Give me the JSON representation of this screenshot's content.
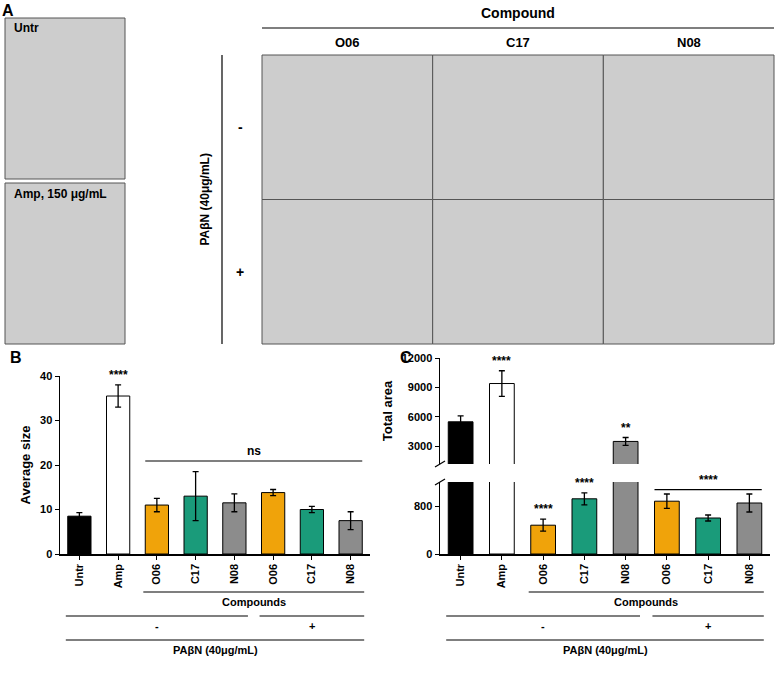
{
  "panel_a": {
    "label": "A",
    "untreated": "Untr",
    "ampicillin": "Amp, 150 μg/mL",
    "header": "Compound",
    "compounds": [
      "O06",
      "C17",
      "N08"
    ],
    "row_title": "PAβN (40μg/mL)",
    "rows": [
      "-",
      "+"
    ]
  },
  "chart_data": [
    {
      "type": "bar",
      "panel": "B",
      "y_label": "Average size",
      "categories": [
        "Untr",
        "Amp",
        "O06",
        "C17",
        "N08",
        "O06",
        "C17",
        "N08"
      ],
      "values": [
        8.5,
        35.5,
        11,
        13,
        11.5,
        13.8,
        10,
        7.5
      ],
      "errors": [
        0.8,
        2.5,
        1.5,
        5.5,
        2,
        0.7,
        0.7,
        2
      ],
      "colors": [
        "#000000",
        "#ffffff",
        "#f0a30a",
        "#1a9b7a",
        "#8c8c8c",
        "#f0a30a",
        "#1a9b7a",
        "#8c8c8c"
      ],
      "ylim": [
        0,
        40
      ],
      "yticks": [
        0,
        10,
        20,
        30,
        40
      ],
      "significance": [
        null,
        "****",
        null,
        null,
        null,
        null,
        null,
        null
      ],
      "brackets": [
        {
          "text": "ns",
          "span": [
            2,
            7
          ]
        }
      ],
      "groups": [
        [
          {
            "label": "Compounds",
            "span": [
              2,
              7
            ]
          }
        ],
        [
          {
            "label": "-",
            "span": [
              0,
              4
            ]
          },
          {
            "label": "+",
            "span": [
              5,
              7
            ]
          }
        ],
        [
          {
            "label": "PAβN (40μg/mL)",
            "span": [
              0,
              7
            ]
          }
        ]
      ]
    },
    {
      "type": "bar",
      "panel": "C",
      "y_label": "Total area",
      "categories": [
        "Untr",
        "Amp",
        "O06",
        "C17",
        "N08",
        "O06",
        "C17",
        "N08"
      ],
      "values": [
        5500,
        9400,
        480,
        920,
        3500,
        880,
        600,
        850
      ],
      "errors": [
        600,
        1300,
        100,
        100,
        400,
        120,
        50,
        150
      ],
      "colors": [
        "#000000",
        "#ffffff",
        "#f0a30a",
        "#1a9b7a",
        "#8c8c8c",
        "#f0a30a",
        "#1a9b7a",
        "#8c8c8c"
      ],
      "segments": [
        {
          "ylim": [
            0,
            1200
          ],
          "yticks": [
            0,
            800
          ]
        },
        {
          "ylim": [
            1200,
            12000
          ],
          "yticks": [
            3000,
            6000,
            9000,
            12000
          ]
        }
      ],
      "significance": [
        null,
        "****",
        "****",
        "****",
        "**",
        null,
        null,
        null
      ],
      "brackets": [
        {
          "text": "****",
          "span": [
            5,
            7
          ]
        }
      ],
      "groups": [
        [
          {
            "label": "Compounds",
            "span": [
              2,
              7
            ]
          }
        ],
        [
          {
            "label": "-",
            "span": [
              0,
              4
            ]
          },
          {
            "label": "+",
            "span": [
              5,
              7
            ]
          }
        ],
        [
          {
            "label": "PAβN (40μg/mL)",
            "span": [
              0,
              7
            ]
          }
        ]
      ]
    }
  ]
}
